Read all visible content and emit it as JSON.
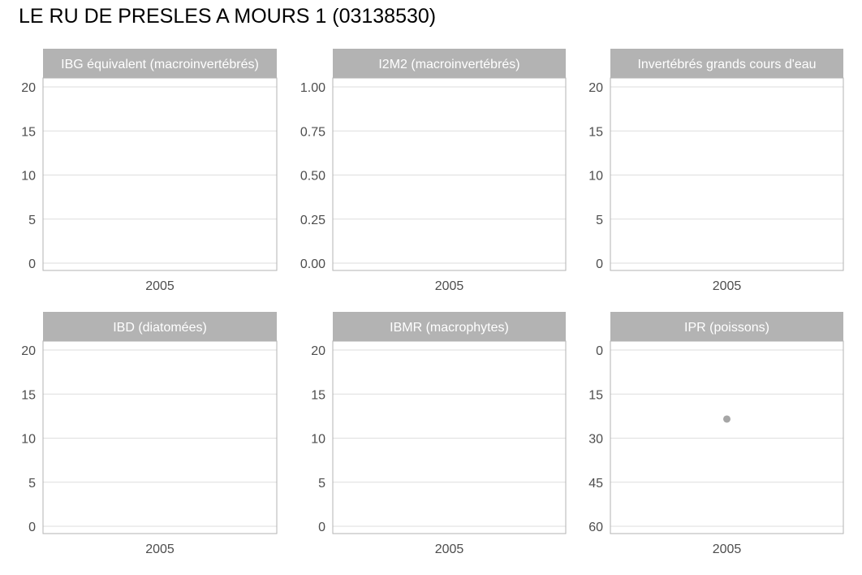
{
  "title": "LE RU DE PRESLES A MOURS 1 (03138530)",
  "colors": {
    "strip_bg": "#b3b3b3",
    "strip_text": "#ffffff",
    "panel_border": "#b3b3b3",
    "grid": "#dedede",
    "tick_text": "#4d4d4d",
    "point": "#a6a6a6"
  },
  "chart_data": [
    {
      "type": "scatter",
      "title": "IBG équivalent (macroinvertébrés)",
      "x_ticks": [
        "2005"
      ],
      "y_ticks": [
        "0",
        "5",
        "10",
        "15",
        "20"
      ],
      "ylim": [
        0,
        20
      ],
      "y_reversed": false,
      "grid": true,
      "points": []
    },
    {
      "type": "scatter",
      "title": "I2M2 (macroinvertébrés)",
      "x_ticks": [
        "2005"
      ],
      "y_ticks": [
        "0.00",
        "0.25",
        "0.50",
        "0.75",
        "1.00"
      ],
      "ylim": [
        0,
        1
      ],
      "y_reversed": false,
      "grid": true,
      "points": []
    },
    {
      "type": "scatter",
      "title": "Invertébrés grands cours d'eau",
      "x_ticks": [
        "2005"
      ],
      "y_ticks": [
        "0",
        "5",
        "10",
        "15",
        "20"
      ],
      "ylim": [
        0,
        20
      ],
      "y_reversed": false,
      "grid": true,
      "points": []
    },
    {
      "type": "scatter",
      "title": "IBD (diatomées)",
      "x_ticks": [
        "2005"
      ],
      "y_ticks": [
        "0",
        "5",
        "10",
        "15",
        "20"
      ],
      "ylim": [
        0,
        20
      ],
      "y_reversed": false,
      "grid": true,
      "points": []
    },
    {
      "type": "scatter",
      "title": "IBMR (macrophytes)",
      "x_ticks": [
        "2005"
      ],
      "y_ticks": [
        "0",
        "5",
        "10",
        "15",
        "20"
      ],
      "ylim": [
        0,
        20
      ],
      "y_reversed": false,
      "grid": true,
      "points": []
    },
    {
      "type": "scatter",
      "title": "IPR (poissons)",
      "x_ticks": [
        "2005"
      ],
      "y_ticks": [
        "0",
        "15",
        "30",
        "45",
        "60"
      ],
      "ylim": [
        0,
        60
      ],
      "y_reversed": true,
      "grid": true,
      "points": [
        {
          "x": "2005",
          "y": 23.5
        }
      ]
    }
  ]
}
